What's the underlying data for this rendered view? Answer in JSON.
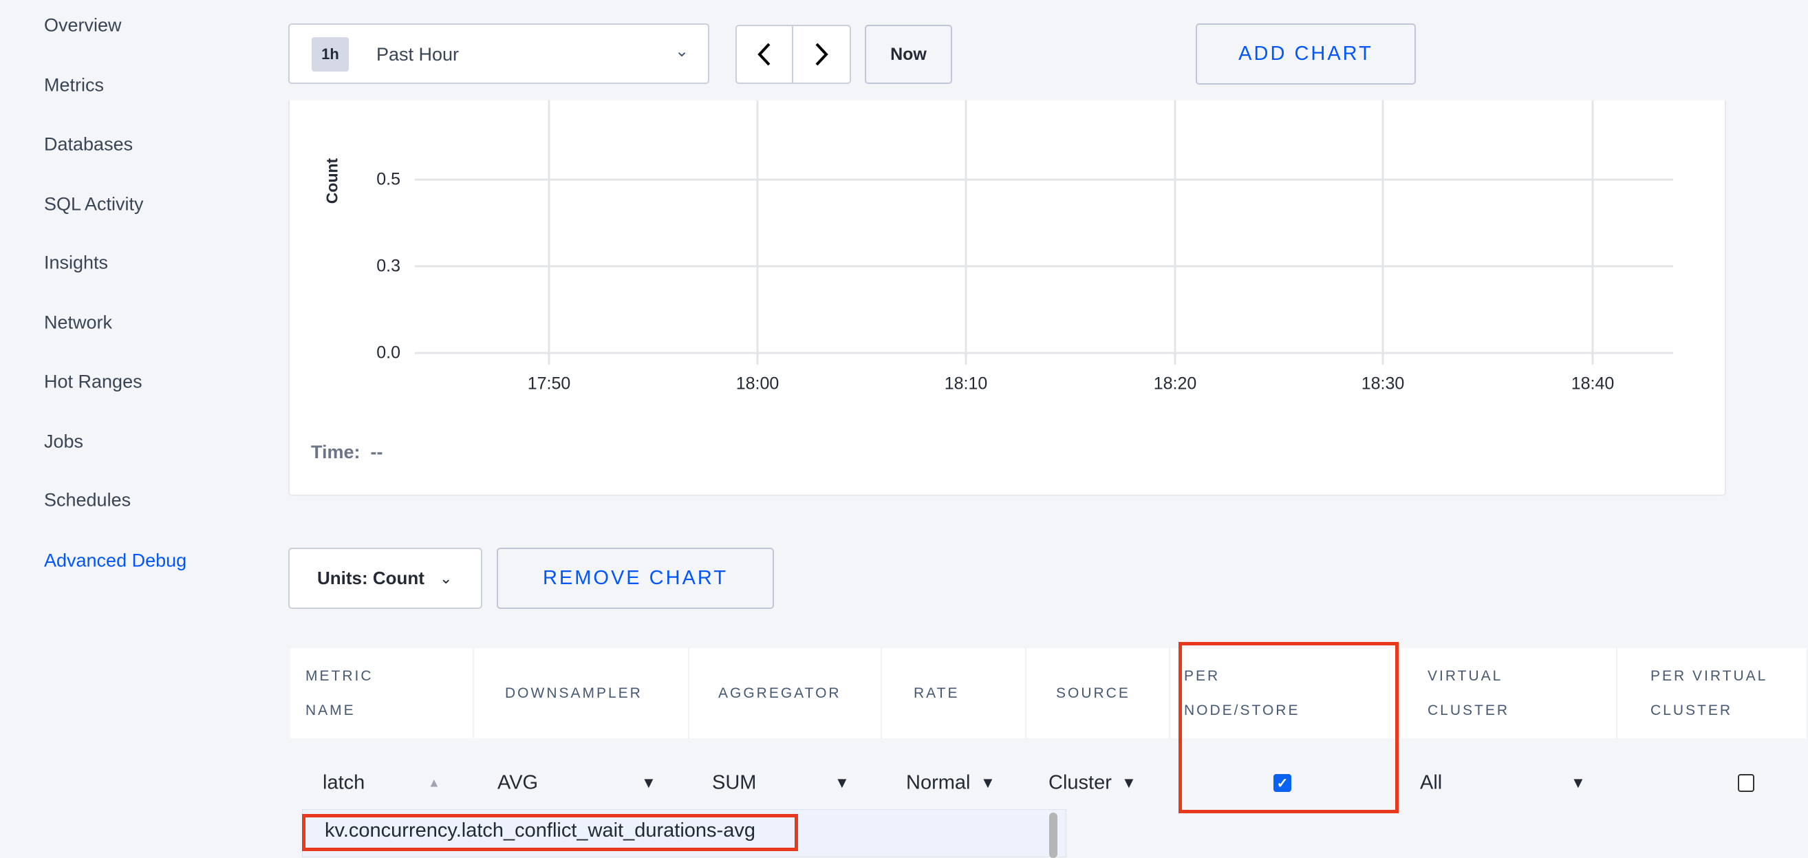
{
  "sidebar": {
    "items": [
      {
        "label": "Overview"
      },
      {
        "label": "Metrics"
      },
      {
        "label": "Databases"
      },
      {
        "label": "SQL Activity"
      },
      {
        "label": "Insights"
      },
      {
        "label": "Network"
      },
      {
        "label": "Hot Ranges"
      },
      {
        "label": "Jobs"
      },
      {
        "label": "Schedules"
      },
      {
        "label": "Advanced Debug",
        "active": true
      }
    ]
  },
  "toolbar": {
    "time_badge": "1h",
    "time_label": "Past Hour",
    "now_label": "Now",
    "add_chart_label": "ADD CHART"
  },
  "chart_data": {
    "type": "line",
    "ylabel": "Count",
    "y_ticks": [
      "0.5",
      "0.3",
      "0.0"
    ],
    "x_ticks": [
      "17:50",
      "18:00",
      "18:10",
      "18:20",
      "18:30",
      "18:40"
    ],
    "series": [],
    "grid": true
  },
  "time_readout": {
    "label": "Time:",
    "value": "--"
  },
  "controls": {
    "units_label": "Units: Count",
    "remove_chart_label": "REMOVE CHART"
  },
  "table": {
    "headers": [
      [
        "METRIC",
        "NAME"
      ],
      [
        "DOWNSAMPLER"
      ],
      [
        "AGGREGATOR"
      ],
      [
        "RATE"
      ],
      [
        "SOURCE"
      ],
      [
        "PER",
        "NODE/STORE"
      ],
      [
        "VIRTUAL",
        "CLUSTER"
      ],
      [
        "PER VIRTUAL",
        "CLUSTER"
      ]
    ],
    "row": {
      "metric": "latch",
      "downsampler": "AVG",
      "aggregator": "SUM",
      "rate": "Normal",
      "source": "Cluster",
      "per_node": true,
      "virtual_cluster": "All",
      "per_virtual_cluster": false
    }
  },
  "autocomplete": {
    "options": [
      "kv.concurrency.latch_conflict_wait_durations-avg"
    ]
  },
  "colors": {
    "accent": "#0055ff",
    "highlight": "#e8391c"
  }
}
